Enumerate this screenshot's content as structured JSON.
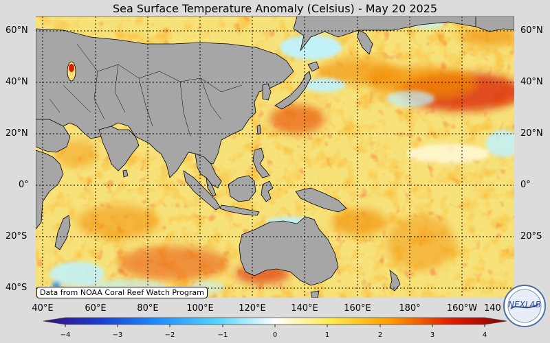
{
  "title": "Sea Surface Temperature Anomaly (Celsius) - May 20 2025",
  "credit": "Data from NOAA Coral Reef Watch Program",
  "logo_text": "NEXLAB",
  "lat_labels": [
    "60°N",
    "40°N",
    "20°N",
    "0°",
    "20°S",
    "40°S"
  ],
  "lon_labels": [
    "40°E",
    "60°E",
    "80°E",
    "100°E",
    "120°E",
    "140°E",
    "160°E",
    "180°",
    "160°W",
    "140"
  ],
  "colorbar": {
    "ticks": [
      "−4",
      "−3",
      "−2",
      "−1",
      "0",
      "1",
      "2",
      "3",
      "4"
    ],
    "colors": [
      "#3b0a7a",
      "#1b3fcf",
      "#1f8fff",
      "#55d4ff",
      "#ffffff",
      "#ffe94a",
      "#ff9a00",
      "#e02000",
      "#8a0000"
    ]
  },
  "map_colors": {
    "land": "#a6a6a6",
    "ocean_base": "#f7e27a",
    "warm": "#f28a00",
    "hot": "#d81e06",
    "cool": "#bff2ff",
    "cold": "#2c8cf0"
  }
}
